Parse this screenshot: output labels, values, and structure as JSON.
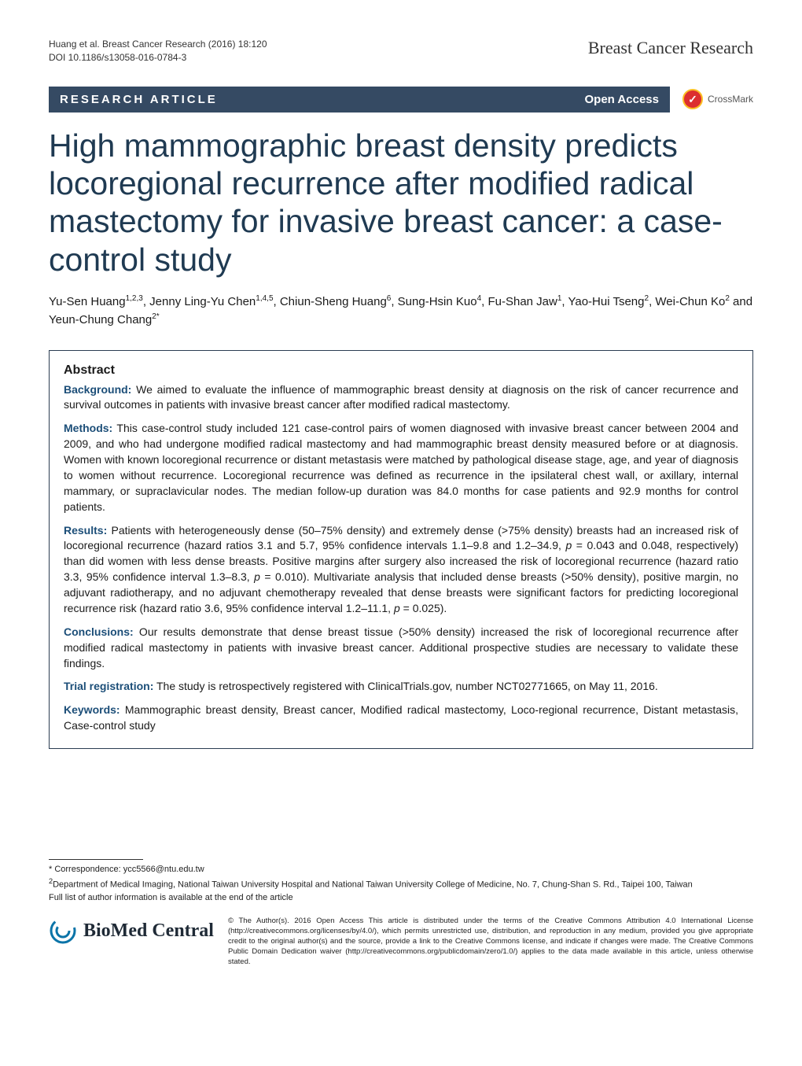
{
  "running_head": {
    "citation_line1": "Huang et al. Breast Cancer Research  (2016) 18:120",
    "citation_line2": "DOI 10.1186/s13058-016-0784-3",
    "journal": "Breast Cancer Research"
  },
  "bar": {
    "article_type": "RESEARCH ARTICLE",
    "open_access": "Open Access"
  },
  "crossmark": {
    "label": "CrossMark",
    "glyph": "✓"
  },
  "title": "High mammographic breast density predicts locoregional recurrence after modified radical mastectomy for invasive breast cancer: a case-control study",
  "authors_html": "Yu-Sen Huang<sup>1,2,3</sup>, Jenny Ling-Yu Chen<sup>1,4,5</sup>, Chiun-Sheng Huang<sup>6</sup>, Sung-Hsin Kuo<sup>4</sup>, Fu-Shan Jaw<sup>1</sup>, Yao-Hui Tseng<sup>2</sup>, Wei-Chun Ko<sup>2</sup> and Yeun-Chung Chang<sup>2*</sup>",
  "abstract": {
    "heading": "Abstract",
    "background": {
      "label": "Background:",
      "text": " We aimed to evaluate the influence of mammographic breast density at diagnosis on the risk of cancer recurrence and survival outcomes in patients with invasive breast cancer after modified radical mastectomy."
    },
    "methods": {
      "label": "Methods:",
      "text": " This case-control study included 121 case-control pairs of women diagnosed with invasive breast cancer between 2004 and 2009, and who had undergone modified radical mastectomy and had mammographic breast density measured before or at diagnosis. Women with known locoregional recurrence or distant metastasis were matched by pathological disease stage, age, and year of diagnosis to women without recurrence. Locoregional recurrence was defined as recurrence in the ipsilateral chest wall, or axillary, internal mammary, or supraclavicular nodes. The median follow-up duration was 84.0 months for case patients and 92.9 months for control patients."
    },
    "results": {
      "label": "Results:",
      "text_part1": " Patients with heterogeneously dense (50–75% density) and extremely dense (>75% density) breasts had an increased risk of locoregional recurrence (hazard ratios 3.1 and 5.7, 95% confidence intervals 1.1–9.8 and 1.2–34.9, ",
      "p1_label": "p",
      "p1_val": " = 0.043 and 0.048, respectively) than did women with less dense breasts. Positive margins after surgery also increased the risk of locoregional recurrence (hazard ratio 3.3, 95% confidence interval 1.3–8.3, ",
      "p2_label": "p",
      "p2_val": " = 0.010). Multivariate analysis that included dense breasts (>50% density), positive margin, no adjuvant radiotherapy, and no adjuvant chemotherapy revealed that dense breasts were significant factors for predicting locoregional recurrence risk (hazard ratio 3.6, 95% confidence interval 1.2–11.1, ",
      "p3_label": "p",
      "p3_val": " = 0.025)."
    },
    "conclusions": {
      "label": "Conclusions:",
      "text": " Our results demonstrate that dense breast tissue (>50% density) increased the risk of locoregional recurrence after modified radical mastectomy in patients with invasive breast cancer. Additional prospective studies are necessary to validate these findings."
    },
    "trial": {
      "label": "Trial registration:",
      "text": " The study is retrospectively registered with ClinicalTrials.gov, number NCT02771665, on May 11, 2016."
    },
    "keywords": {
      "label": "Keywords:",
      "text": " Mammographic breast density, Breast cancer, Modified radical mastectomy, Loco-regional recurrence, Distant metastasis, Case-control study"
    }
  },
  "correspondence": {
    "line1": "* Correspondence: ycc5566@ntu.edu.tw",
    "line2_sup": "2",
    "line2": "Department of Medical Imaging, National Taiwan University Hospital and National Taiwan University College of Medicine, No. 7, Chung-Shan S. Rd., Taipei 100, Taiwan",
    "line3": "Full list of author information is available at the end of the article"
  },
  "footer": {
    "logo_text": "BioMed Central",
    "license": "© The Author(s). 2016 Open Access This article is distributed under the terms of the Creative Commons Attribution 4.0 International License (http://creativecommons.org/licenses/by/4.0/), which permits unrestricted use, distribution, and reproduction in any medium, provided you give appropriate credit to the original author(s) and the source, provide a link to the Creative Commons license, and indicate if changes were made. The Creative Commons Public Domain Dedication waiver (http://creativecommons.org/publicdomain/zero/1.0/) applies to the data made available in this article, unless otherwise stated."
  },
  "colors": {
    "bar_bg": "#354a63",
    "title_color": "#1f3a52",
    "runin_color": "#1c4e78",
    "crossmark_fill": "#dc2f2f",
    "crossmark_ring": "#fbbf24",
    "swirl_color": "#0b74a8"
  }
}
